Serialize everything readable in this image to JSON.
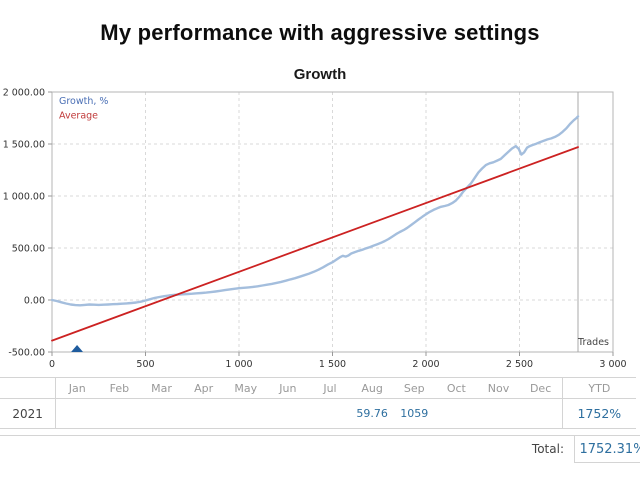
{
  "header": {
    "title": "My performance with aggressive settings"
  },
  "colors": {
    "growth_line": "#a4bedd",
    "average_line": "#cc2222",
    "legend_blue": "#4a6fb5",
    "legend_red": "#c03a3a",
    "marker_blue": "#1f5c9e",
    "value_blue": "#2e6f9f",
    "grid_gray": "#d9d9d9",
    "border_gray": "#b5b5b5",
    "month_gray": "#999999"
  },
  "chart_data": {
    "type": "line",
    "title": "Growth",
    "axis_label": "Trades",
    "xlim": [
      0,
      3000
    ],
    "ylim": [
      -500,
      2000
    ],
    "x_tick_values": [
      0,
      500,
      1000,
      1500,
      2000,
      2500,
      3000
    ],
    "x_tick_labels": [
      "0",
      "500",
      "1 000",
      "1 500",
      "2 000",
      "2 500",
      "3 000"
    ],
    "y_tick_values": [
      2000,
      1500,
      1000,
      500,
      0,
      -500
    ],
    "y_tick_labels": [
      "2 000.00",
      "1 500.00",
      "1 000.00",
      "500.00",
      "0.00",
      "-500.00"
    ],
    "grid": "dashed",
    "legend_position": "top-left",
    "data_end_x": 2813,
    "drawdown_marker_x": 134,
    "series": [
      {
        "name": "Growth, %",
        "line_color": "#a4bedd",
        "legend_color": "#4a6fb5",
        "width": 2.4,
        "points": [
          [
            0,
            0
          ],
          [
            25,
            -10
          ],
          [
            50,
            -22
          ],
          [
            75,
            -34
          ],
          [
            100,
            -43
          ],
          [
            125,
            -49
          ],
          [
            150,
            -51
          ],
          [
            175,
            -47
          ],
          [
            200,
            -43
          ],
          [
            225,
            -45
          ],
          [
            250,
            -47
          ],
          [
            275,
            -45
          ],
          [
            300,
            -43
          ],
          [
            325,
            -40
          ],
          [
            350,
            -38
          ],
          [
            375,
            -36
          ],
          [
            400,
            -33
          ],
          [
            425,
            -29
          ],
          [
            450,
            -24
          ],
          [
            475,
            -16
          ],
          [
            500,
            -5
          ],
          [
            525,
            8
          ],
          [
            550,
            20
          ],
          [
            575,
            29
          ],
          [
            600,
            37
          ],
          [
            625,
            43
          ],
          [
            650,
            48
          ],
          [
            675,
            52
          ],
          [
            700,
            55
          ],
          [
            725,
            58
          ],
          [
            750,
            61
          ],
          [
            775,
            64
          ],
          [
            800,
            67
          ],
          [
            825,
            71
          ],
          [
            850,
            76
          ],
          [
            875,
            82
          ],
          [
            900,
            88
          ],
          [
            925,
            95
          ],
          [
            950,
            102
          ],
          [
            975,
            108
          ],
          [
            1000,
            113
          ],
          [
            1025,
            117
          ],
          [
            1050,
            121
          ],
          [
            1075,
            126
          ],
          [
            1100,
            132
          ],
          [
            1125,
            139
          ],
          [
            1150,
            147
          ],
          [
            1175,
            155
          ],
          [
            1200,
            164
          ],
          [
            1225,
            174
          ],
          [
            1250,
            186
          ],
          [
            1275,
            198
          ],
          [
            1300,
            210
          ],
          [
            1325,
            224
          ],
          [
            1350,
            238
          ],
          [
            1375,
            254
          ],
          [
            1400,
            271
          ],
          [
            1425,
            291
          ],
          [
            1450,
            314
          ],
          [
            1475,
            340
          ],
          [
            1500,
            363
          ],
          [
            1520,
            387
          ],
          [
            1540,
            412
          ],
          [
            1555,
            425
          ],
          [
            1570,
            417
          ],
          [
            1585,
            428
          ],
          [
            1600,
            447
          ],
          [
            1620,
            461
          ],
          [
            1640,
            473
          ],
          [
            1660,
            484
          ],
          [
            1680,
            497
          ],
          [
            1700,
            509
          ],
          [
            1720,
            523
          ],
          [
            1740,
            537
          ],
          [
            1760,
            550
          ],
          [
            1780,
            567
          ],
          [
            1800,
            587
          ],
          [
            1820,
            610
          ],
          [
            1840,
            634
          ],
          [
            1860,
            654
          ],
          [
            1880,
            672
          ],
          [
            1900,
            694
          ],
          [
            1920,
            720
          ],
          [
            1940,
            747
          ],
          [
            1960,
            774
          ],
          [
            1980,
            800
          ],
          [
            2000,
            824
          ],
          [
            2020,
            847
          ],
          [
            2040,
            866
          ],
          [
            2060,
            882
          ],
          [
            2080,
            896
          ],
          [
            2100,
            904
          ],
          [
            2120,
            913
          ],
          [
            2140,
            932
          ],
          [
            2160,
            957
          ],
          [
            2180,
            997
          ],
          [
            2200,
            1044
          ],
          [
            2220,
            1082
          ],
          [
            2240,
            1120
          ],
          [
            2260,
            1172
          ],
          [
            2280,
            1227
          ],
          [
            2300,
            1264
          ],
          [
            2320,
            1297
          ],
          [
            2340,
            1314
          ],
          [
            2360,
            1324
          ],
          [
            2380,
            1340
          ],
          [
            2400,
            1357
          ],
          [
            2420,
            1390
          ],
          [
            2440,
            1424
          ],
          [
            2460,
            1457
          ],
          [
            2480,
            1480
          ],
          [
            2495,
            1455
          ],
          [
            2510,
            1398
          ],
          [
            2525,
            1420
          ],
          [
            2540,
            1464
          ],
          [
            2555,
            1480
          ],
          [
            2570,
            1490
          ],
          [
            2590,
            1503
          ],
          [
            2610,
            1518
          ],
          [
            2630,
            1532
          ],
          [
            2650,
            1544
          ],
          [
            2670,
            1554
          ],
          [
            2690,
            1568
          ],
          [
            2710,
            1588
          ],
          [
            2730,
            1616
          ],
          [
            2750,
            1650
          ],
          [
            2770,
            1692
          ],
          [
            2790,
            1728
          ],
          [
            2805,
            1750
          ],
          [
            2813,
            1765
          ]
        ]
      },
      {
        "name": "Average",
        "line_color": "#cc2222",
        "legend_color": "#c03a3a",
        "width": 1.8,
        "points": [
          [
            0,
            -390
          ],
          [
            2813,
            1470
          ]
        ]
      }
    ]
  },
  "table": {
    "year_label": "2021",
    "months": [
      "Jan",
      "Feb",
      "Mar",
      "Apr",
      "May",
      "Jun",
      "Jul",
      "Aug",
      "Sep",
      "Oct",
      "Nov",
      "Dec"
    ],
    "month_values": [
      "",
      "",
      "",
      "",
      "",
      "",
      "",
      "59.76",
      "1059",
      "",
      "",
      ""
    ],
    "ytd_label": "YTD",
    "ytd_value": "1752%",
    "total_label": "Total:",
    "total_value": "1752.31%"
  }
}
